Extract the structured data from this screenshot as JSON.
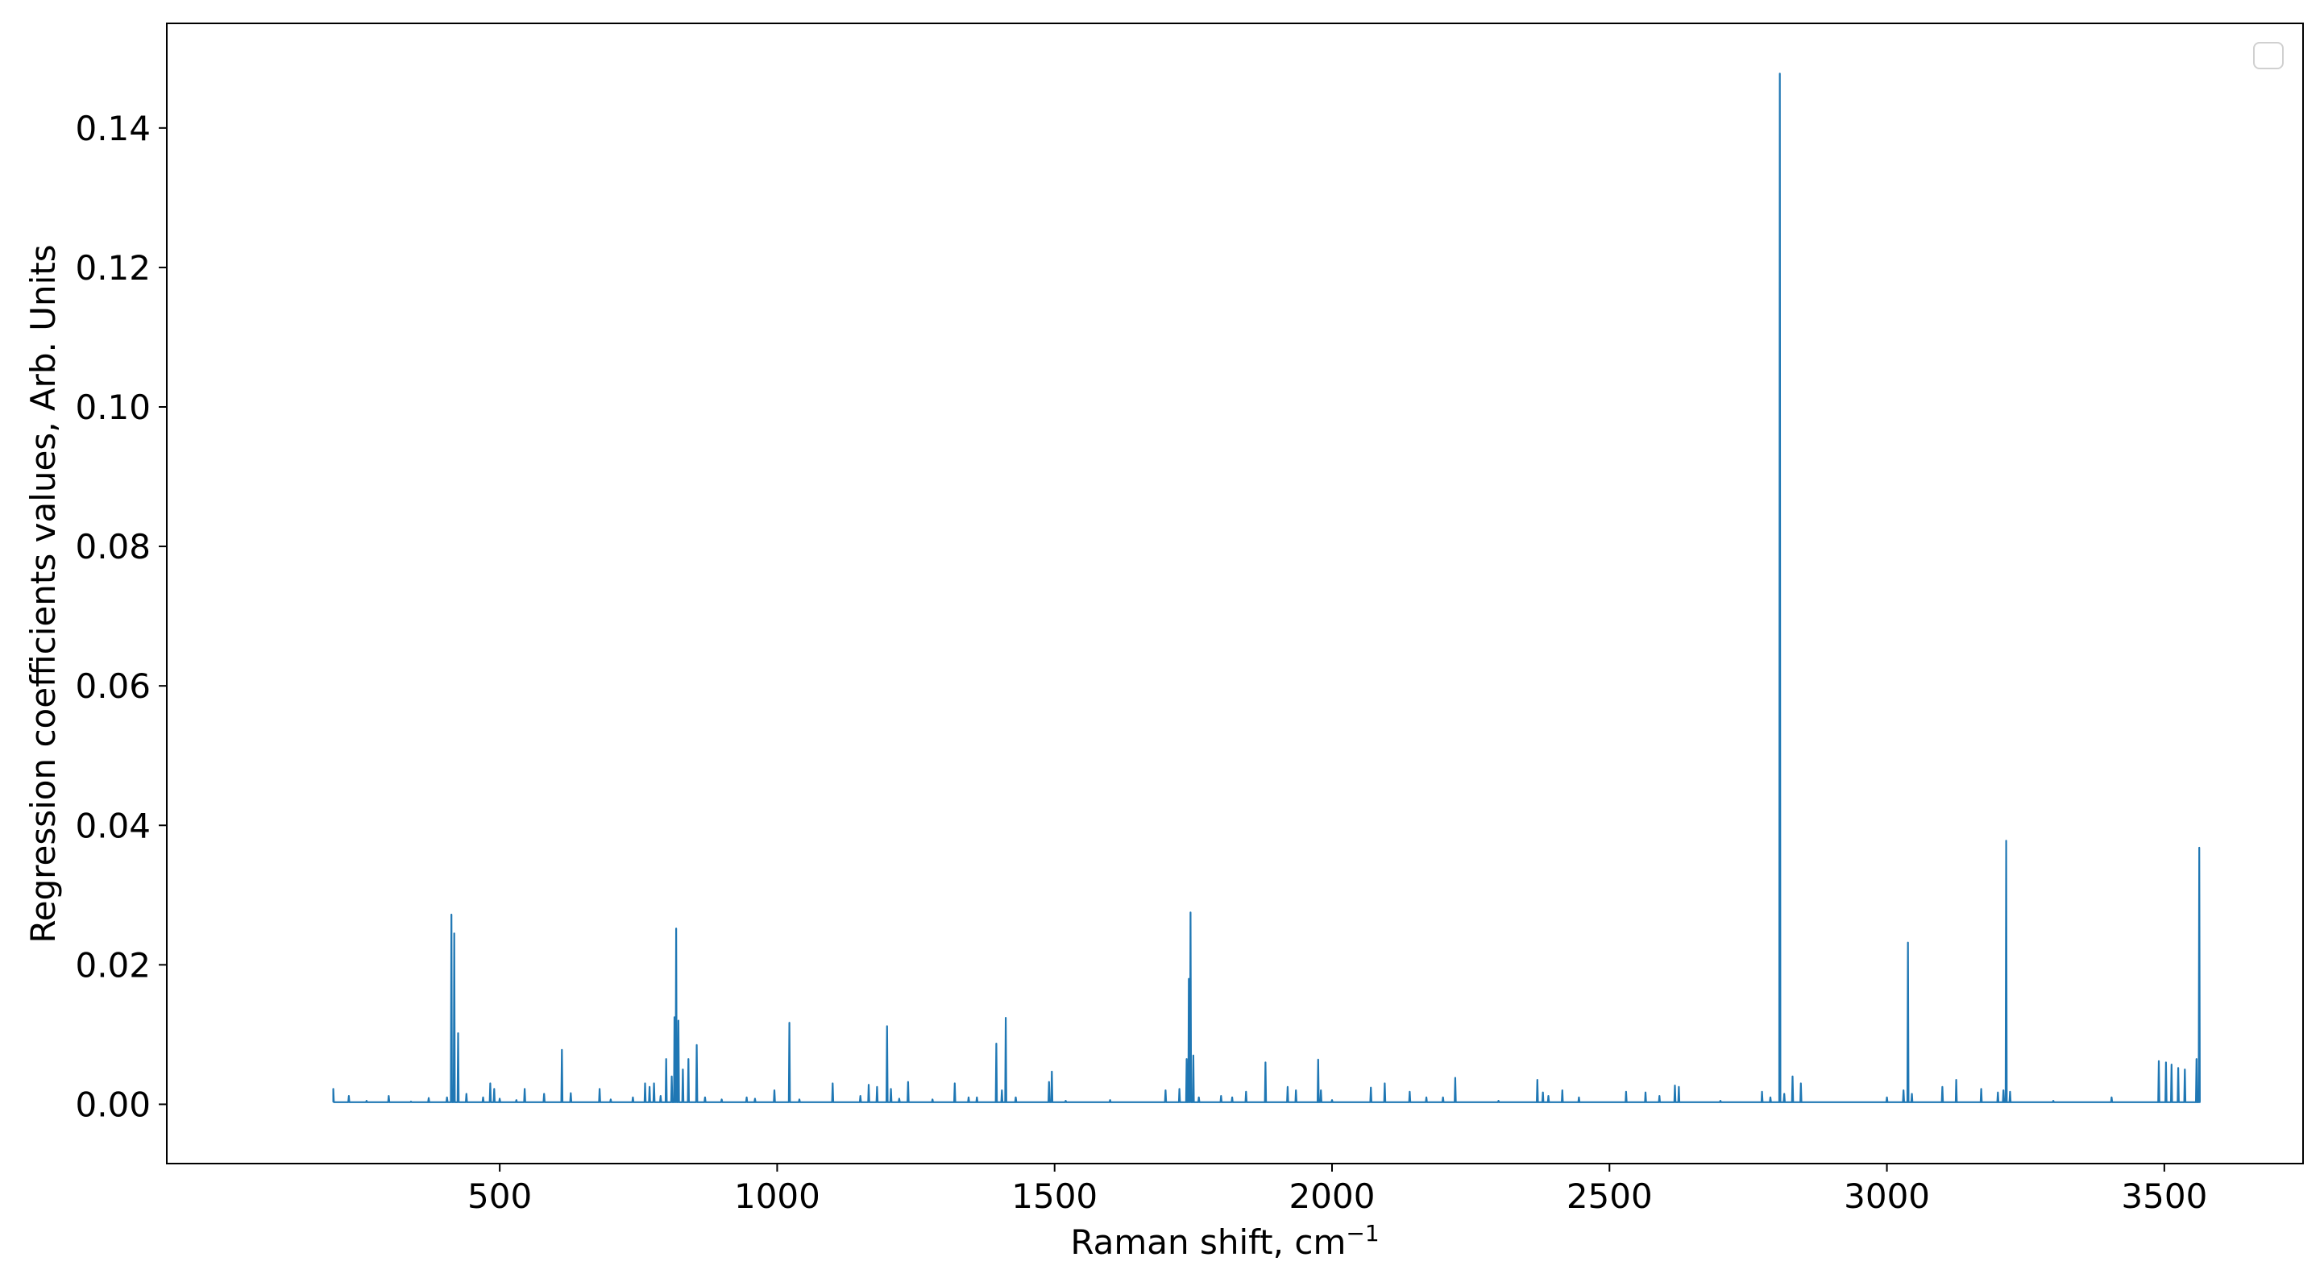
{
  "chart_data": {
    "type": "line",
    "title": "",
    "xlabel": "Raman shift, cm",
    "xlabel_sup": "−1",
    "ylabel": "Regression coefficients values, Arb. Units",
    "xlim": [
      -100,
      3750
    ],
    "ylim": [
      -0.0085,
      0.155
    ],
    "xticks": [
      500,
      1000,
      1500,
      2000,
      2500,
      3000,
      3500
    ],
    "xtick_labels": [
      "500",
      "1000",
      "1500",
      "2000",
      "2500",
      "3000",
      "3500"
    ],
    "yticks": [
      0.0,
      0.02,
      0.04,
      0.06,
      0.08,
      0.1,
      0.12,
      0.14
    ],
    "ytick_labels": [
      "0.00",
      "0.02",
      "0.04",
      "0.06",
      "0.08",
      "0.10",
      "0.12",
      "0.14"
    ],
    "grid": false,
    "legend": {
      "position": "top-right",
      "entries": []
    },
    "series": [
      {
        "color": "#1f77b4",
        "x_range": [
          200,
          3565
        ],
        "baseline": 0.0003,
        "peaks": [
          [
            200,
            0.0022
          ],
          [
            228,
            0.0012
          ],
          [
            260,
            0.0005
          ],
          [
            300,
            0.0012
          ],
          [
            340,
            0.0004
          ],
          [
            372,
            0.0009
          ],
          [
            405,
            0.001
          ],
          [
            413,
            0.0272
          ],
          [
            418,
            0.0245
          ],
          [
            425,
            0.0102
          ],
          [
            440,
            0.0015
          ],
          [
            470,
            0.001
          ],
          [
            483,
            0.003
          ],
          [
            490,
            0.0022
          ],
          [
            500,
            0.0008
          ],
          [
            530,
            0.0006
          ],
          [
            545,
            0.0022
          ],
          [
            580,
            0.0015
          ],
          [
            612,
            0.0078
          ],
          [
            628,
            0.0016
          ],
          [
            680,
            0.0022
          ],
          [
            700,
            0.0007
          ],
          [
            740,
            0.001
          ],
          [
            762,
            0.003
          ],
          [
            770,
            0.0025
          ],
          [
            778,
            0.003
          ],
          [
            790,
            0.0012
          ],
          [
            800,
            0.0065
          ],
          [
            810,
            0.004
          ],
          [
            815,
            0.0125
          ],
          [
            818,
            0.0252
          ],
          [
            822,
            0.012
          ],
          [
            830,
            0.005
          ],
          [
            840,
            0.0065
          ],
          [
            855,
            0.0085
          ],
          [
            870,
            0.001
          ],
          [
            900,
            0.0007
          ],
          [
            945,
            0.001
          ],
          [
            960,
            0.0008
          ],
          [
            995,
            0.002
          ],
          [
            1022,
            0.0117
          ],
          [
            1040,
            0.0007
          ],
          [
            1100,
            0.003
          ],
          [
            1150,
            0.0012
          ],
          [
            1165,
            0.0028
          ],
          [
            1180,
            0.0025
          ],
          [
            1198,
            0.0112
          ],
          [
            1205,
            0.0022
          ],
          [
            1220,
            0.0008
          ],
          [
            1236,
            0.0032
          ],
          [
            1280,
            0.0007
          ],
          [
            1320,
            0.003
          ],
          [
            1345,
            0.001
          ],
          [
            1360,
            0.001
          ],
          [
            1395,
            0.0087
          ],
          [
            1405,
            0.002
          ],
          [
            1412,
            0.0124
          ],
          [
            1430,
            0.001
          ],
          [
            1490,
            0.0032
          ],
          [
            1495,
            0.0047
          ],
          [
            1520,
            0.0005
          ],
          [
            1600,
            0.0006
          ],
          [
            1700,
            0.002
          ],
          [
            1725,
            0.0022
          ],
          [
            1738,
            0.0065
          ],
          [
            1742,
            0.018
          ],
          [
            1745,
            0.0275
          ],
          [
            1750,
            0.007
          ],
          [
            1760,
            0.001
          ],
          [
            1800,
            0.0012
          ],
          [
            1820,
            0.001
          ],
          [
            1845,
            0.0018
          ],
          [
            1880,
            0.006
          ],
          [
            1920,
            0.0025
          ],
          [
            1935,
            0.002
          ],
          [
            1975,
            0.0064
          ],
          [
            1980,
            0.002
          ],
          [
            2000,
            0.0006
          ],
          [
            2070,
            0.0024
          ],
          [
            2095,
            0.003
          ],
          [
            2140,
            0.0018
          ],
          [
            2170,
            0.001
          ],
          [
            2200,
            0.001
          ],
          [
            2222,
            0.0038
          ],
          [
            2300,
            0.0005
          ],
          [
            2370,
            0.0035
          ],
          [
            2380,
            0.0017
          ],
          [
            2390,
            0.0012
          ],
          [
            2415,
            0.002
          ],
          [
            2445,
            0.001
          ],
          [
            2530,
            0.0018
          ],
          [
            2565,
            0.0017
          ],
          [
            2590,
            0.0012
          ],
          [
            2618,
            0.0027
          ],
          [
            2625,
            0.0025
          ],
          [
            2700,
            0.0005
          ],
          [
            2775,
            0.0018
          ],
          [
            2790,
            0.001
          ],
          [
            2807,
            0.1478
          ],
          [
            2815,
            0.0015
          ],
          [
            2830,
            0.004
          ],
          [
            2845,
            0.003
          ],
          [
            3000,
            0.001
          ],
          [
            3030,
            0.002
          ],
          [
            3038,
            0.0232
          ],
          [
            3045,
            0.0015
          ],
          [
            3100,
            0.0025
          ],
          [
            3125,
            0.0035
          ],
          [
            3170,
            0.0022
          ],
          [
            3200,
            0.0017
          ],
          [
            3210,
            0.002
          ],
          [
            3215,
            0.0378
          ],
          [
            3222,
            0.0018
          ],
          [
            3300,
            0.0005
          ],
          [
            3405,
            0.001
          ],
          [
            3490,
            0.0062
          ],
          [
            3503,
            0.006
          ],
          [
            3513,
            0.0057
          ],
          [
            3525,
            0.0052
          ],
          [
            3537,
            0.005
          ],
          [
            3558,
            0.0065
          ],
          [
            3563,
            0.0368
          ]
        ]
      }
    ]
  }
}
